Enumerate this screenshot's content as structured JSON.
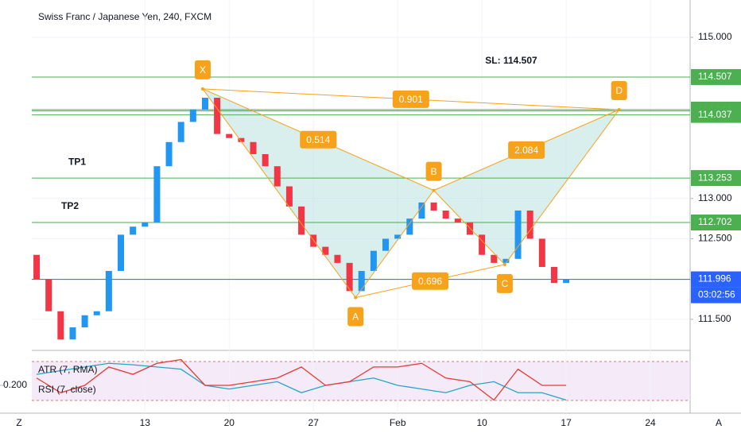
{
  "chart_data": {
    "type": "candlestick",
    "title": "Swiss Franc / Japanese Yen, 240, FXCM",
    "x": [
      -9,
      -8,
      -7,
      -6,
      -5,
      -4,
      -3,
      -2,
      -1,
      0,
      1,
      2,
      3,
      4,
      5,
      6,
      7,
      8,
      9,
      10,
      11,
      12,
      13,
      14,
      15,
      16,
      17,
      18,
      19,
      20,
      21,
      22,
      23,
      24,
      25,
      26,
      27,
      28,
      29,
      30,
      31,
      32,
      33,
      34,
      35
    ],
    "open": [
      112.3,
      112.0,
      111.6,
      111.25,
      111.4,
      111.55,
      111.6,
      112.1,
      112.55,
      112.65,
      112.7,
      113.4,
      113.7,
      113.95,
      114.1,
      114.25,
      113.8,
      113.75,
      113.7,
      113.55,
      113.4,
      113.15,
      112.9,
      112.55,
      112.4,
      112.3,
      112.2,
      111.85,
      112.1,
      112.35,
      112.5,
      112.55,
      112.75,
      112.95,
      112.85,
      112.75,
      112.7,
      112.55,
      112.3,
      112.2,
      112.25,
      112.85,
      112.5,
      112.15,
      111.95
    ],
    "close": [
      112.0,
      111.6,
      111.25,
      111.4,
      111.55,
      111.6,
      112.1,
      112.55,
      112.65,
      112.7,
      113.4,
      113.7,
      113.95,
      114.1,
      114.25,
      113.8,
      113.75,
      113.7,
      113.55,
      113.4,
      113.15,
      112.9,
      112.55,
      112.4,
      112.3,
      112.2,
      111.85,
      112.1,
      112.35,
      112.5,
      112.55,
      112.75,
      112.95,
      112.85,
      112.75,
      112.7,
      112.55,
      112.3,
      112.2,
      112.25,
      112.85,
      112.5,
      112.15,
      111.95,
      112.0
    ],
    "up_color": "#2196f3",
    "down_color": "#f23645",
    "xlim": [
      -9.4,
      45.3
    ],
    "xticks": [
      {
        "value": 0,
        "label": "13"
      },
      {
        "value": 7,
        "label": "20"
      },
      {
        "value": 14,
        "label": "27"
      },
      {
        "value": 21,
        "label": "Feb"
      },
      {
        "value": 28,
        "label": "10"
      },
      {
        "value": 35,
        "label": "17"
      },
      {
        "value": 42,
        "label": "24"
      }
    ],
    "ylim": [
      111.124,
      115.463
    ],
    "yticks": [
      {
        "value": 115,
        "label": "115.000"
      },
      {
        "value": 113,
        "label": "113.000"
      },
      {
        "value": 112.5,
        "label": "112.500"
      },
      {
        "value": 111.5,
        "label": "111.500"
      }
    ],
    "levels": [
      {
        "value": 114.507,
        "color": "#4caf50",
        "note": "SL: 114.507"
      },
      {
        "value": 114.102,
        "color": "#4caf50"
      },
      {
        "value": 114.086,
        "color": "#4caf50"
      },
      {
        "value": 114.037,
        "color": "#4caf50"
      },
      {
        "value": 113.253,
        "color": "#4caf50",
        "note": "TP1"
      },
      {
        "value": 112.702,
        "color": "#4caf50",
        "note": "TP2"
      },
      {
        "value": 111.996,
        "color": "#2962ff"
      }
    ],
    "countdown": "03:02:56",
    "pattern_color": "#f7a21b",
    "pattern": [
      {
        "name": "X",
        "x": 4.8,
        "y": 114.36
      },
      {
        "name": "A",
        "x": 17.5,
        "y": 111.77
      },
      {
        "name": "B",
        "x": 24,
        "y": 113.1
      },
      {
        "name": "C",
        "x": 29.9,
        "y": 112.18
      },
      {
        "name": "D",
        "x": 39.4,
        "y": 114.102
      }
    ],
    "legs": [
      {
        "from": 0,
        "to": 4,
        "ratio": 0.901
      },
      {
        "from": 0,
        "to": 2,
        "ratio": 0.514
      },
      {
        "from": 2,
        "to": 4,
        "ratio": 2.084
      },
      {
        "from": 1,
        "to": 3,
        "ratio": 0.696
      }
    ],
    "indicator": {
      "ylim": [
        0.16,
        0.24
      ],
      "yticks": [
        {
          "value": 0.2,
          "label": "0.200"
        }
      ],
      "x": [
        -9,
        -7,
        -5,
        -3,
        -1,
        1,
        3,
        5,
        7,
        9,
        11,
        13,
        15,
        17,
        19,
        21,
        23,
        25,
        27,
        29,
        31,
        33,
        35
      ],
      "series": [
        {
          "name": "ATR (7, RMA)",
          "color": "#26a5c6",
          "values": [
            0.215,
            0.22,
            0.225,
            0.23,
            0.228,
            0.225,
            0.222,
            0.2,
            0.195,
            0.2,
            0.205,
            0.19,
            0.2,
            0.205,
            0.21,
            0.2,
            0.195,
            0.19,
            0.2,
            0.205,
            0.19,
            0.19,
            0.18
          ]
        },
        {
          "name": "RSI (7, close)",
          "color": "#e53935",
          "values": [
            0.21,
            0.19,
            0.2,
            0.225,
            0.215,
            0.23,
            0.235,
            0.2,
            0.2,
            0.205,
            0.21,
            0.225,
            0.2,
            0.205,
            0.225,
            0.225,
            0.23,
            0.21,
            0.205,
            0.18,
            0.222,
            0.2,
            0.2
          ]
        }
      ]
    },
    "left_button": "Z",
    "right_button": "A"
  }
}
